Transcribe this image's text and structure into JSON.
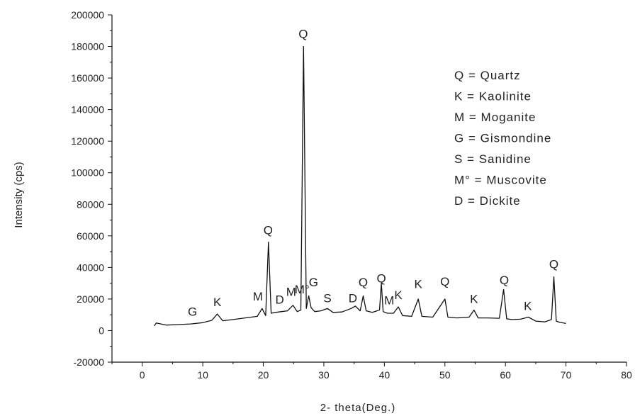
{
  "chart_data": {
    "type": "line",
    "xlabel": "2- theta(Deg.)",
    "ylabel": "Intensity (cps)",
    "xlim": [
      -5,
      80
    ],
    "ylim": [
      -20000,
      200000
    ],
    "x_ticks": [
      "0",
      "10",
      "20",
      "30",
      "40",
      "50",
      "60",
      "70",
      "80"
    ],
    "y_ticks": [
      "-20000",
      "0",
      "20000",
      "40000",
      "60000",
      "80000",
      "100000",
      "120000",
      "140000",
      "160000",
      "180000",
      "200000"
    ],
    "x_tick_values": [
      0,
      10,
      20,
      30,
      40,
      50,
      60,
      70,
      80
    ],
    "y_tick_values": [
      -20000,
      0,
      20000,
      40000,
      60000,
      80000,
      100000,
      120000,
      140000,
      160000,
      180000,
      200000
    ],
    "series": [
      {
        "x": [
          2,
          2.3,
          4,
          6,
          8,
          10,
          11.5,
          12.4,
          13.3,
          15,
          17,
          19,
          19.8,
          20.4,
          20.85,
          21.3,
          22,
          23,
          24,
          24.9,
          25.6,
          26.2,
          26.65,
          27.1,
          27.5,
          27.9,
          28.5,
          29.5,
          30.6,
          31.5,
          33,
          34.5,
          35.2,
          36,
          36.5,
          37,
          38,
          39.2,
          39.5,
          39.8,
          40.5,
          41.5,
          42.3,
          43,
          44.5,
          45.6,
          46.2,
          48,
          50,
          50.5,
          52,
          54,
          54.8,
          55.5,
          57,
          59,
          59.7,
          60.2,
          61,
          62.5,
          63.8,
          65,
          66.5,
          67.6,
          68,
          68.4,
          69,
          70
        ],
        "y": [
          3000,
          4800,
          3500,
          3800,
          4200,
          5000,
          6500,
          10500,
          6200,
          7000,
          8000,
          9000,
          14000,
          9500,
          56000,
          11000,
          11500,
          12000,
          12500,
          16000,
          12000,
          13000,
          180000,
          14000,
          22000,
          14500,
          12000,
          12500,
          14000,
          11500,
          11800,
          14000,
          15500,
          12500,
          22000,
          12500,
          11500,
          13000,
          30000,
          12000,
          11000,
          11000,
          15000,
          9500,
          9000,
          20000,
          9000,
          8500,
          20000,
          8500,
          8000,
          8500,
          13000,
          8000,
          8000,
          7800,
          26000,
          7500,
          7000,
          7200,
          8500,
          6000,
          5500,
          7000,
          34000,
          6000,
          5200,
          4500
        ]
      }
    ],
    "peak_labels": [
      {
        "text": "G",
        "x": 8.3,
        "y": 9500
      },
      {
        "text": "K",
        "x": 12.4,
        "y": 15500
      },
      {
        "text": "M",
        "x": 19.1,
        "y": 19000
      },
      {
        "text": "Q",
        "x": 20.8,
        "y": 61000
      },
      {
        "text": "D",
        "x": 22.7,
        "y": 17000
      },
      {
        "text": "M",
        "x": 24.6,
        "y": 22000
      },
      {
        "text": "Q",
        "x": 26.6,
        "y": 185500
      },
      {
        "text": "M°",
        "x": 26.4,
        "y": 23500
      },
      {
        "text": "G",
        "x": 28.3,
        "y": 28000
      },
      {
        "text": "S",
        "x": 30.6,
        "y": 18000
      },
      {
        "text": "D",
        "x": 34.8,
        "y": 18000
      },
      {
        "text": "Q",
        "x": 36.5,
        "y": 28000
      },
      {
        "text": "Q",
        "x": 39.5,
        "y": 30500
      },
      {
        "text": "M",
        "x": 40.8,
        "y": 16500
      },
      {
        "text": "K",
        "x": 42.3,
        "y": 20000
      },
      {
        "text": "K",
        "x": 45.6,
        "y": 27000
      },
      {
        "text": "Q",
        "x": 50.0,
        "y": 28500
      },
      {
        "text": "K",
        "x": 54.8,
        "y": 17500
      },
      {
        "text": "Q",
        "x": 59.8,
        "y": 29500
      },
      {
        "text": "K",
        "x": 63.7,
        "y": 13000
      },
      {
        "text": "Q",
        "x": 68.0,
        "y": 39500
      }
    ],
    "legend": {
      "placement": "top-right",
      "entries": [
        "Q = Quartz",
        "K = Kaolinite",
        "M = Moganite",
        "G = Gismondine",
        "S =  Sanidine",
        "M° = Muscovite",
        "D = Dickite"
      ]
    }
  }
}
